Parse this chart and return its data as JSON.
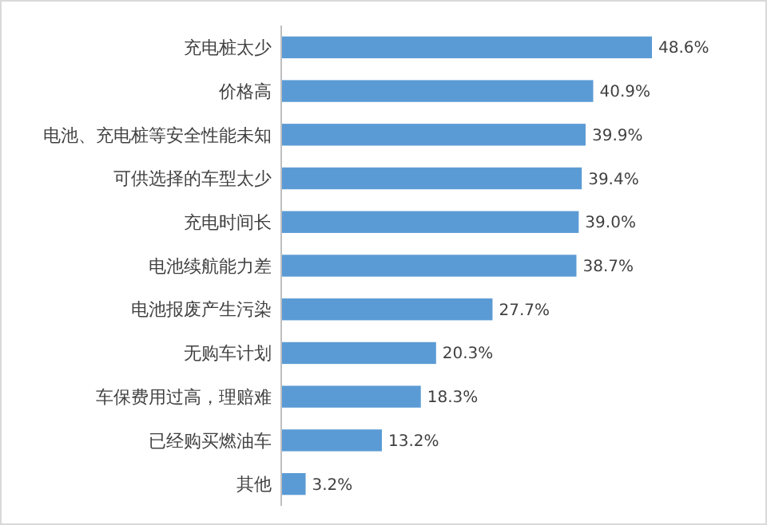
{
  "chart_data": {
    "type": "bar",
    "orientation": "horizontal",
    "categories": [
      "充电桩太少",
      "价格高",
      "电池、充电桩等安全性能未知",
      "可供选择的车型太少",
      "充电时间长",
      "电池续航能力差",
      "电池报废产生污染",
      "无购车计划",
      "车保费用过高，理赔难",
      "已经购买燃油车",
      "其他"
    ],
    "values": [
      48.6,
      40.9,
      39.9,
      39.4,
      39.0,
      38.7,
      27.7,
      20.3,
      18.3,
      13.2,
      3.2
    ],
    "value_labels": [
      "48.6%",
      "40.9%",
      "39.9%",
      "39.4%",
      "39.0%",
      "38.7%",
      "27.7%",
      "20.3%",
      "18.3%",
      "13.2%",
      "3.2%"
    ],
    "color": "#5b9bd5"
  }
}
